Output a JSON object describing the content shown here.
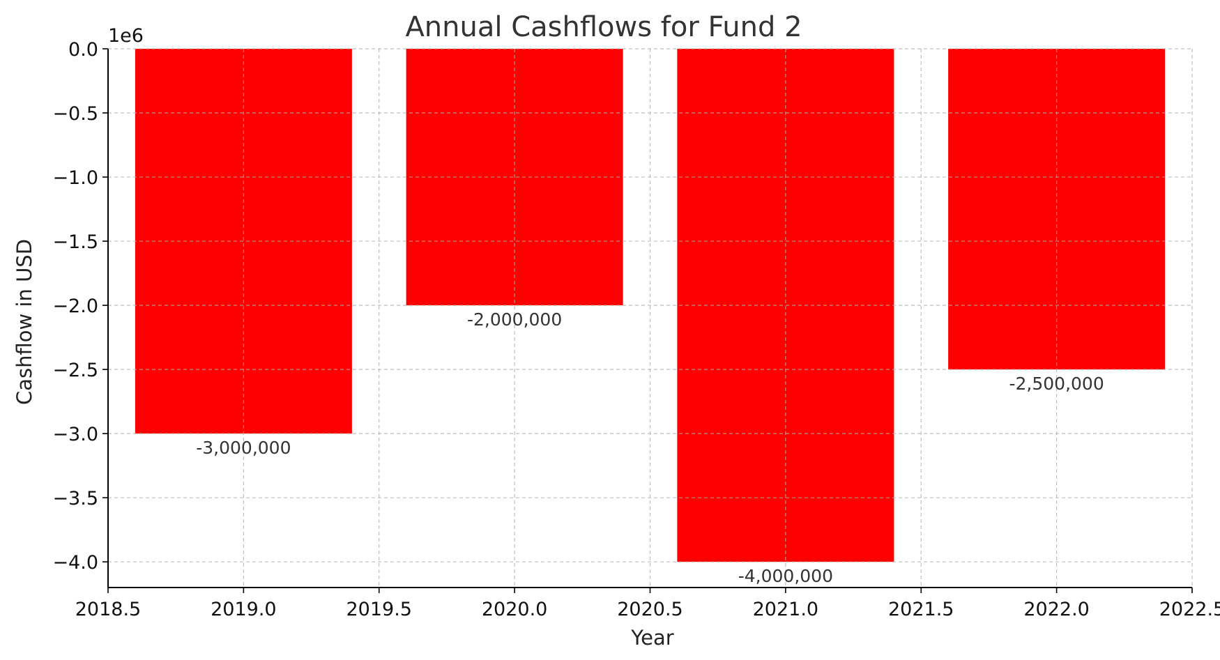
{
  "chart_data": {
    "type": "bar",
    "title": "Annual Cashflows for Fund 2",
    "xlabel": "Year",
    "ylabel": "Cashflow in USD",
    "y_offset_text": "1e6",
    "x": [
      2019,
      2020,
      2021,
      2022
    ],
    "values": [
      -3000000,
      -2000000,
      -4000000,
      -2500000
    ],
    "data_labels": [
      "-3,000,000",
      "-2,000,000",
      "-4,000,000",
      "-2,500,000"
    ],
    "bar_color": "#ff0000",
    "xlim": [
      2018.5,
      2022.5
    ],
    "ylim": [
      -4200000,
      0
    ],
    "x_ticks": [
      2018.5,
      2019.0,
      2019.5,
      2020.0,
      2020.5,
      2021.0,
      2021.5,
      2022.0,
      2022.5
    ],
    "x_tick_labels": [
      "2018.5",
      "2019.0",
      "2019.5",
      "2020.0",
      "2020.5",
      "2021.0",
      "2021.5",
      "2022.0",
      "2022.5"
    ],
    "y_ticks": [
      0,
      -500000,
      -1000000,
      -1500000,
      -2000000,
      -2500000,
      -3000000,
      -3500000,
      -4000000
    ],
    "y_tick_labels": [
      "0.0",
      "−0.5",
      "−1.0",
      "−1.5",
      "−2.0",
      "−2.5",
      "−3.0",
      "−3.5",
      "−4.0"
    ],
    "grid": true,
    "legend": "none"
  }
}
